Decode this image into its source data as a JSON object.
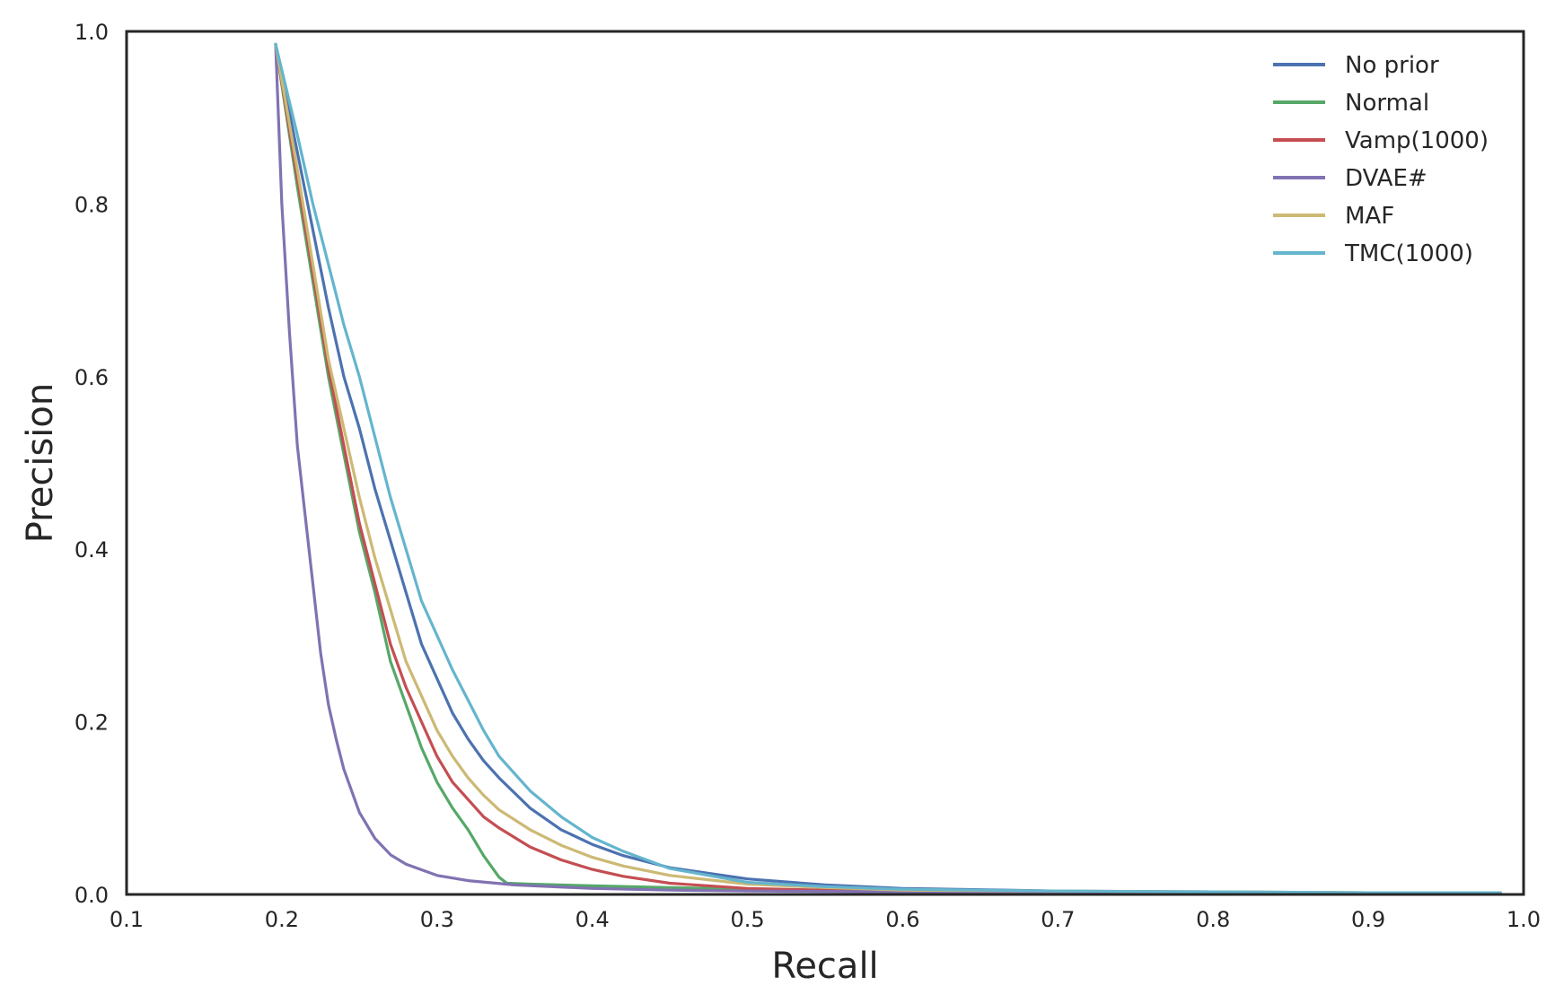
{
  "chart_data": {
    "type": "line",
    "title": "",
    "xlabel": "Recall",
    "ylabel": "Precision",
    "xlim": [
      0.1,
      1.0
    ],
    "ylim": [
      0.0,
      1.0
    ],
    "xticks": [
      "0.1",
      "0.2",
      "0.3",
      "0.4",
      "0.5",
      "0.6",
      "0.7",
      "0.8",
      "0.9",
      "1.0"
    ],
    "yticks": [
      "0.0",
      "0.2",
      "0.4",
      "0.6",
      "0.8",
      "1.0"
    ],
    "grid": false,
    "legend_position": "top-right",
    "series": [
      {
        "name": "No prior",
        "color": "#4c72b0",
        "x": [
          0.196,
          0.21,
          0.22,
          0.23,
          0.24,
          0.25,
          0.26,
          0.27,
          0.28,
          0.29,
          0.3,
          0.31,
          0.32,
          0.33,
          0.34,
          0.36,
          0.38,
          0.4,
          0.42,
          0.45,
          0.5,
          0.55,
          0.6,
          0.7,
          0.8,
          0.9,
          0.985
        ],
        "y": [
          0.985,
          0.86,
          0.77,
          0.68,
          0.6,
          0.54,
          0.47,
          0.41,
          0.35,
          0.29,
          0.25,
          0.21,
          0.18,
          0.155,
          0.135,
          0.1,
          0.075,
          0.058,
          0.045,
          0.031,
          0.018,
          0.011,
          0.007,
          0.004,
          0.003,
          0.002,
          0.002
        ]
      },
      {
        "name": "Normal",
        "color": "#55a868",
        "x": [
          0.196,
          0.21,
          0.22,
          0.23,
          0.24,
          0.25,
          0.26,
          0.27,
          0.28,
          0.29,
          0.3,
          0.31,
          0.32,
          0.33,
          0.34,
          0.345,
          0.36,
          0.4,
          0.45,
          0.5,
          0.6,
          0.7,
          0.8,
          0.9,
          0.985
        ],
        "y": [
          0.985,
          0.82,
          0.71,
          0.6,
          0.51,
          0.42,
          0.35,
          0.27,
          0.22,
          0.17,
          0.13,
          0.1,
          0.075,
          0.045,
          0.02,
          0.013,
          0.012,
          0.01,
          0.008,
          0.006,
          0.004,
          0.003,
          0.002,
          0.002,
          0.002
        ]
      },
      {
        "name": "Vamp(1000)",
        "color": "#c44e52",
        "x": [
          0.196,
          0.21,
          0.22,
          0.23,
          0.24,
          0.25,
          0.26,
          0.27,
          0.28,
          0.29,
          0.3,
          0.31,
          0.32,
          0.33,
          0.34,
          0.36,
          0.38,
          0.4,
          0.42,
          0.45,
          0.5,
          0.55,
          0.6,
          0.7,
          0.8,
          0.9,
          0.985
        ],
        "y": [
          0.985,
          0.83,
          0.72,
          0.61,
          0.52,
          0.43,
          0.36,
          0.29,
          0.24,
          0.2,
          0.16,
          0.13,
          0.11,
          0.09,
          0.077,
          0.055,
          0.04,
          0.029,
          0.021,
          0.013,
          0.007,
          0.005,
          0.004,
          0.003,
          0.002,
          0.002,
          0.002
        ]
      },
      {
        "name": "DVAE#",
        "color": "#8172b2",
        "x": [
          0.196,
          0.2,
          0.205,
          0.21,
          0.215,
          0.22,
          0.225,
          0.23,
          0.235,
          0.24,
          0.25,
          0.26,
          0.27,
          0.28,
          0.3,
          0.32,
          0.35,
          0.4,
          0.45,
          0.5,
          0.6,
          0.7,
          0.8,
          0.9,
          0.985
        ],
        "y": [
          0.985,
          0.8,
          0.65,
          0.52,
          0.44,
          0.36,
          0.28,
          0.22,
          0.18,
          0.145,
          0.095,
          0.065,
          0.046,
          0.035,
          0.022,
          0.016,
          0.011,
          0.007,
          0.005,
          0.004,
          0.003,
          0.002,
          0.002,
          0.002,
          0.002
        ]
      },
      {
        "name": "MAF",
        "color": "#ccb974",
        "x": [
          0.196,
          0.21,
          0.22,
          0.23,
          0.24,
          0.25,
          0.26,
          0.27,
          0.28,
          0.29,
          0.3,
          0.31,
          0.32,
          0.33,
          0.34,
          0.36,
          0.38,
          0.4,
          0.42,
          0.45,
          0.5,
          0.55,
          0.6,
          0.7,
          0.8,
          0.9,
          0.985
        ],
        "y": [
          0.985,
          0.84,
          0.73,
          0.62,
          0.54,
          0.46,
          0.39,
          0.33,
          0.27,
          0.23,
          0.19,
          0.16,
          0.135,
          0.115,
          0.098,
          0.075,
          0.057,
          0.043,
          0.033,
          0.022,
          0.012,
          0.008,
          0.005,
          0.004,
          0.003,
          0.002,
          0.002
        ]
      },
      {
        "name": "TMC(1000)",
        "color": "#64b5cd",
        "x": [
          0.196,
          0.21,
          0.22,
          0.23,
          0.24,
          0.25,
          0.26,
          0.27,
          0.28,
          0.29,
          0.3,
          0.31,
          0.32,
          0.33,
          0.34,
          0.36,
          0.38,
          0.4,
          0.42,
          0.45,
          0.5,
          0.55,
          0.6,
          0.7,
          0.8,
          0.9,
          0.985
        ],
        "y": [
          0.985,
          0.88,
          0.8,
          0.73,
          0.66,
          0.6,
          0.53,
          0.46,
          0.4,
          0.34,
          0.3,
          0.26,
          0.225,
          0.19,
          0.16,
          0.12,
          0.09,
          0.066,
          0.05,
          0.03,
          0.014,
          0.009,
          0.006,
          0.004,
          0.003,
          0.002,
          0.002
        ]
      }
    ]
  }
}
